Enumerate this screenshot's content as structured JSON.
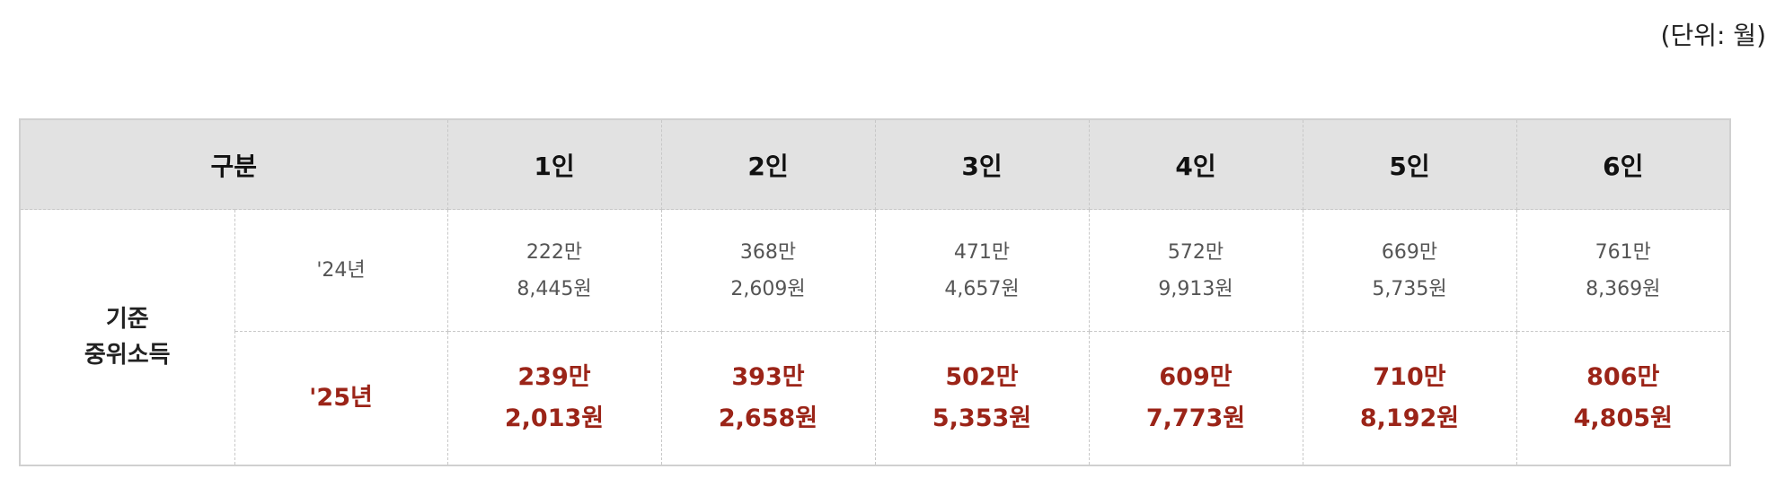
{
  "unit_label": "(단위: 월)",
  "header": {
    "category": "구분",
    "columns": [
      "1인",
      "2인",
      "3인",
      "4인",
      "5인",
      "6인"
    ]
  },
  "row_group": {
    "label_line1": "기준",
    "label_line2": "중위소득"
  },
  "rows": [
    {
      "year": "'24년",
      "values": [
        [
          "222만",
          "8,445원"
        ],
        [
          "368만",
          "2,609원"
        ],
        [
          "471만",
          "4,657원"
        ],
        [
          "572만",
          "9,913원"
        ],
        [
          "669만",
          "5,735원"
        ],
        [
          "761만",
          "8,369원"
        ]
      ]
    },
    {
      "year": "'25년",
      "values": [
        [
          "239만",
          "2,013원"
        ],
        [
          "393만",
          "2,658원"
        ],
        [
          "502만",
          "5,353원"
        ],
        [
          "609만",
          "7,773원"
        ],
        [
          "710만",
          "8,192원"
        ],
        [
          "806만",
          "4,805원"
        ]
      ]
    }
  ],
  "colors": {
    "highlight": "#9b2418",
    "header_bg": "#e2e2e2"
  }
}
